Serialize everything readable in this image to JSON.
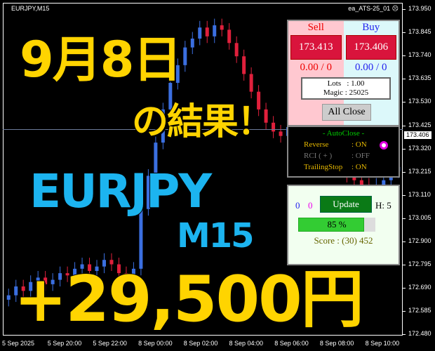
{
  "chart": {
    "symbol": "EURJPY,M15",
    "ea_name": "ea_ATS-25_01",
    "ea_icon": "sad-face-icon",
    "current_price": "173.406",
    "price_labels": [
      "173.950",
      "173.845",
      "173.740",
      "173.635",
      "173.530",
      "173.425",
      "173.320",
      "173.215",
      "173.110",
      "173.005",
      "172.900",
      "172.795",
      "172.690",
      "172.585",
      "172.480"
    ],
    "time_labels": [
      "5 Sep 2025",
      "5 Sep 20:00",
      "5 Sep 22:00",
      "8 Sep 00:00",
      "8 Sep 02:00",
      "8 Sep 04:00",
      "8 Sep 06:00",
      "8 Sep 08:00",
      "8 Sep 10:00"
    ],
    "colors": {
      "up": "#3b6fe0",
      "down": "#e0203c"
    },
    "closes": [
      172.66,
      172.7,
      172.68,
      172.72,
      172.74,
      172.71,
      172.73,
      172.76,
      172.75,
      172.78,
      172.8,
      172.77,
      172.79,
      172.82,
      172.8,
      172.76,
      172.74,
      172.78,
      173.05,
      173.2,
      173.35,
      173.5,
      173.62,
      173.7,
      173.78,
      173.82,
      173.87,
      173.83,
      173.88,
      173.86,
      173.8,
      173.74,
      173.66,
      173.58,
      173.5,
      173.44,
      173.4,
      173.38,
      173.42,
      173.44,
      173.46,
      173.41,
      173.4,
      173.36,
      173.3,
      173.24,
      173.2,
      173.18,
      173.16,
      173.14,
      173.16,
      173.18,
      173.22,
      173.24
    ]
  },
  "overlay": {
    "date": "9月8日",
    "result": "の結果！",
    "pair": "EURJPY",
    "timeframe": "M15",
    "profit": "+29,500円"
  },
  "panel": {
    "sell_label": "Sell",
    "buy_label": "Buy",
    "sell_price": "173.413",
    "buy_price": "173.406",
    "sell_pl": "0.00 / 0",
    "buy_pl": "0.00 / 0",
    "lots": "Lots   : 1.00",
    "magic": "Magic : 25025",
    "all_close": "All Close"
  },
  "autoclose": {
    "title": "- AutoClose -",
    "reverse_label": "Reverse",
    "reverse_value": ": ON",
    "rci_label": "RCI  ( + )",
    "rci_value": ": OFF",
    "trailing_label": "TrailingStop",
    "trailing_value": ": ON"
  },
  "score": {
    "count_blue": "0",
    "count_magenta": "0",
    "update": "Update",
    "h": "H: 5",
    "progress_text": "85 %",
    "progress": 0.85,
    "score": "Score : (30) 452"
  }
}
